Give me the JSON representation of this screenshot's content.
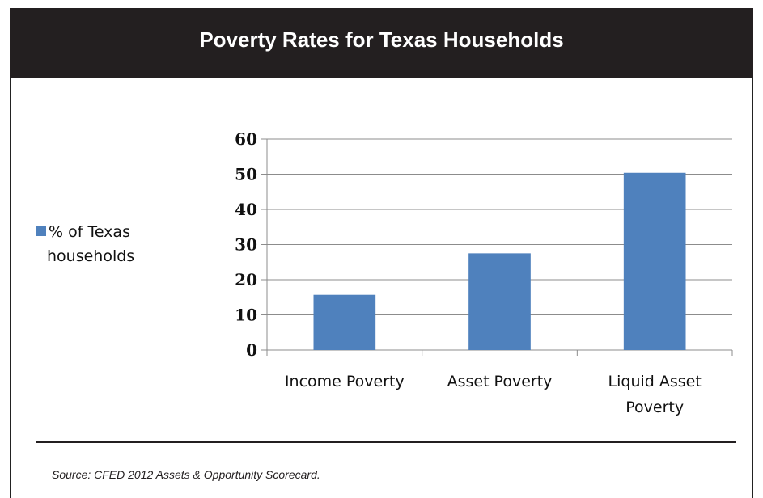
{
  "header": {
    "title": "Poverty Rates for Texas Households"
  },
  "source": {
    "text": "Source: CFED 2012 Assets & Opportunity Scorecard."
  },
  "legend": {
    "line1": "% of Texas",
    "line2": "households"
  },
  "colors": {
    "bar": "#4f81bd",
    "header_bg": "#231f20"
  },
  "chart_data": {
    "type": "bar",
    "categories": [
      [
        "Income Poverty"
      ],
      [
        "Asset Poverty"
      ],
      [
        "Liquid Asset",
        "Poverty"
      ]
    ],
    "series": [
      {
        "name": "% of Texas households",
        "values": [
          15.7,
          27.5,
          50.4
        ]
      }
    ],
    "ylim": [
      0,
      60
    ],
    "yticks": [
      "0",
      "10",
      "20",
      "30",
      "40",
      "50",
      "60"
    ],
    "grid": true,
    "legend_position": "left"
  }
}
